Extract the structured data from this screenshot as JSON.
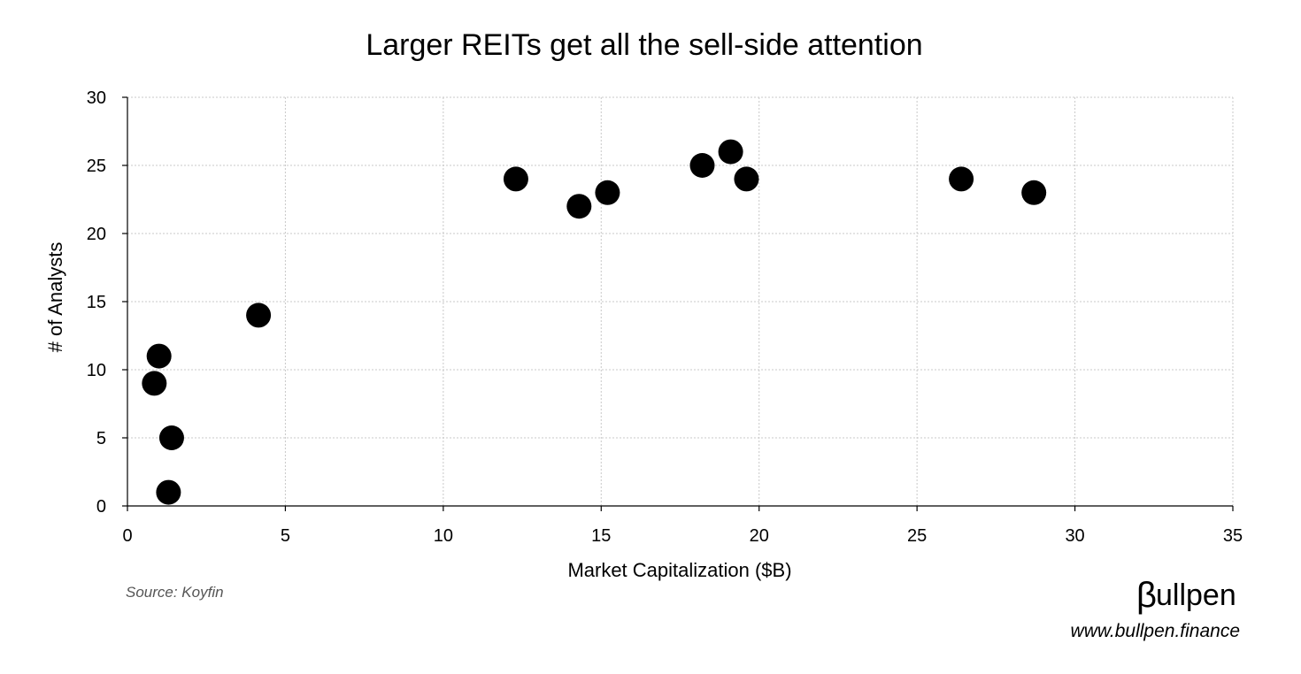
{
  "chart_data": {
    "type": "scatter",
    "title": "Larger REITs get all the sell-side attention",
    "xlabel": "Market Capitalization ($B)",
    "ylabel": "# of Analysts",
    "xlim": [
      0,
      35
    ],
    "ylim": [
      0,
      30
    ],
    "xticks": [
      0,
      5,
      10,
      15,
      20,
      25,
      30,
      35
    ],
    "yticks": [
      0,
      5,
      10,
      15,
      20,
      25,
      30
    ],
    "grid": true,
    "marker_color": "#000000",
    "points": [
      {
        "x": 0.85,
        "y": 9
      },
      {
        "x": 1.0,
        "y": 11
      },
      {
        "x": 1.3,
        "y": 1
      },
      {
        "x": 1.4,
        "y": 5
      },
      {
        "x": 4.15,
        "y": 14
      },
      {
        "x": 12.3,
        "y": 24
      },
      {
        "x": 14.3,
        "y": 22
      },
      {
        "x": 15.2,
        "y": 23
      },
      {
        "x": 18.2,
        "y": 25
      },
      {
        "x": 19.1,
        "y": 26
      },
      {
        "x": 19.6,
        "y": 24
      },
      {
        "x": 26.4,
        "y": 24
      },
      {
        "x": 28.7,
        "y": 23
      }
    ]
  },
  "footer": {
    "source": "Source: Koyfin",
    "brand_symbol": "β",
    "brand_rest": "ullpen",
    "url": "www.bullpen.finance"
  }
}
